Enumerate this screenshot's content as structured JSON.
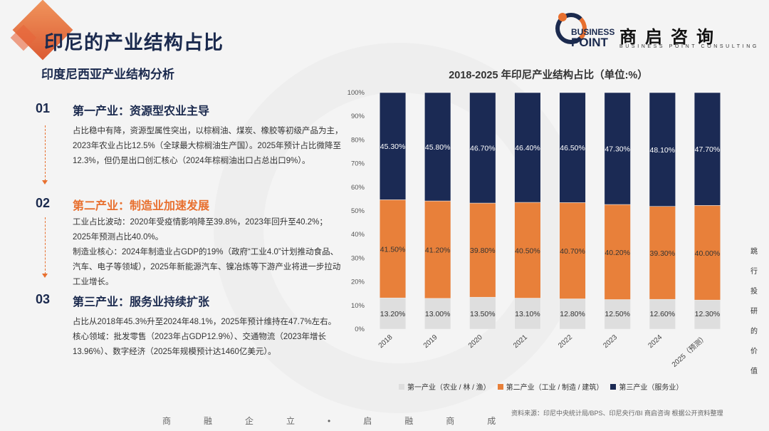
{
  "header": {
    "title": "印尼的产业结构占比",
    "subtitle": "印度尼西亚产业结构分析"
  },
  "brand": {
    "en_line1": "BUSINESS",
    "en_line2": "POINT",
    "cn_name": "商启咨询",
    "tagline": "BUSINESS POINT CONSULTING"
  },
  "sections": [
    {
      "num": "01",
      "heading": "第一产业：资源型农业主导",
      "paragraphs": [
        "占比稳中有降，资源型属性突出，以棕榈油、煤炭、橡胶等初级产品为主，2023年农业占比12.5%（全球最大棕榈油生产国）。2025年预计占比微降至12.3%，但仍是出口创汇核心（2024年棕榈油出口占总出口9%）。"
      ]
    },
    {
      "num": "02",
      "heading": "第二产业：制造业加速发展",
      "paragraphs": [
        "工业占比波动：2020年受疫情影响降至39.8%，2023年回升至40.2%；2025年预测占比40.0%。",
        "制造业核心：2024年制造业占GDP的19%（政府“工业4.0”计划推动食品、汽车、电子等领域），2025年新能源汽车、镍冶炼等下游产业将进一步拉动工业增长。"
      ]
    },
    {
      "num": "03",
      "heading": "第三产业：服务业持续扩张",
      "paragraphs": [
        "占比从2018年45.3%升至2024年48.1%，2025年预计维持在47.7%左右。核心领域：批发零售（2023年占GDP12.9%）、交通物流（2023年增长13.96%）、数字经济（2025年规模预计达1460亿美元）。"
      ]
    }
  ],
  "chart_title": "2018-2025 年印尼产业结构占比（单位:%）",
  "chart_data": {
    "type": "bar",
    "stacked": true,
    "title": "2018-2025 年印尼产业结构占比（单位:%）",
    "categories": [
      "2018",
      "2019",
      "2020",
      "2021",
      "2022",
      "2023",
      "2024",
      "2025（预测）"
    ],
    "series": [
      {
        "name": "第一产业（农业 / 林 / 渔）",
        "color": "#dedede",
        "values": [
          13.2,
          13.0,
          13.5,
          13.1,
          12.8,
          12.5,
          12.6,
          12.3
        ],
        "labels": [
          "13.20%",
          "13.00%",
          "13.50%",
          "13.10%",
          "12.80%",
          "12.50%",
          "12.60%",
          "12.30%"
        ]
      },
      {
        "name": "第二产业（工业 / 制造 / 建筑）",
        "color": "#e8803a",
        "values": [
          41.5,
          41.2,
          39.8,
          40.5,
          40.7,
          40.2,
          39.3,
          40.0
        ],
        "labels": [
          "41.50%",
          "41.20%",
          "39.80%",
          "40.50%",
          "40.70%",
          "40.20%",
          "39.30%",
          "40.00%"
        ]
      },
      {
        "name": "第三产业（服务业）",
        "color": "#1b2a54",
        "values": [
          45.3,
          45.8,
          46.7,
          46.4,
          46.5,
          47.3,
          48.1,
          47.7
        ],
        "labels": [
          "45.30%",
          "45.80%",
          "46.70%",
          "46.40%",
          "46.50%",
          "47.30%",
          "48.10%",
          "47.70%"
        ]
      }
    ],
    "ylim": [
      0,
      100
    ],
    "y_ticks": [
      "0%",
      "10%",
      "20%",
      "30%",
      "40%",
      "50%",
      "60%",
      "70%",
      "80%",
      "90%",
      "100%"
    ],
    "legend_position": "bottom"
  },
  "source_note": "资料来源：印尼中央统计局/BPS、印尼央行/BI 商启咨询 根据公开资料整理",
  "side_text": "跳行投研的价值",
  "footer_slogan": "商融企立•启融商成"
}
